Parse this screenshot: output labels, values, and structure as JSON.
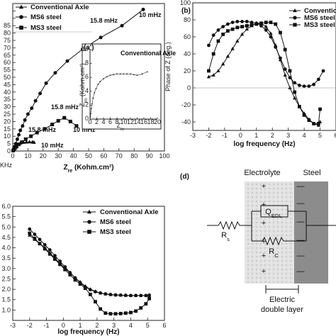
{
  "chart_data": [
    {
      "id": "a",
      "type": "scatter",
      "title": "",
      "panel_label": "",
      "xlabel": "Z",
      "xlabel_sub": "re",
      "xlabel_unit": " (Kohm.cm²)",
      "ylabel": "",
      "xlim": [
        0,
        100
      ],
      "ylim": [
        0,
        100
      ],
      "xticks": [
        0,
        10,
        20,
        30,
        40,
        50,
        60,
        70,
        80,
        90,
        100
      ],
      "yticks": [
        0,
        5,
        10,
        15,
        20,
        25,
        30,
        35,
        40,
        45,
        50,
        55,
        60,
        65,
        70,
        75,
        80,
        85,
        90,
        95
      ],
      "ytick_labels_shown": [
        "0",
        "5",
        "10",
        "15",
        "20",
        "25",
        "30",
        "35",
        "40",
        "45",
        "50",
        "55",
        "60",
        "65",
        "70",
        "75",
        "80",
        "85"
      ],
      "legend": [
        "Conventional Axle",
        "MS6 steel",
        "MS3 steel"
      ],
      "corner_label": "KHz",
      "series": [
        {
          "name": "MS6 steel",
          "marker": "circle",
          "x": [
            0.3,
            0.8,
            1.3,
            2,
            3,
            4,
            5,
            6.5,
            8,
            10,
            12.5,
            15,
            18,
            22,
            28,
            36,
            46,
            58,
            72,
            86
          ],
          "y": [
            0.5,
            1.5,
            3,
            5,
            8,
            11,
            14,
            17,
            21,
            25,
            29,
            34,
            39,
            46,
            53,
            61,
            69,
            77,
            85,
            96
          ]
        },
        {
          "name": "MS3 steel",
          "marker": "square",
          "x": [
            0.3,
            0.8,
            1.5,
            2.5,
            4,
            6,
            8.5,
            12,
            16,
            21,
            26,
            30,
            34,
            38,
            42
          ],
          "y": [
            0.3,
            1,
            2,
            3,
            4.5,
            6,
            8,
            10,
            12.5,
            15,
            18,
            20.5,
            22.5,
            20,
            17
          ]
        },
        {
          "name": "Conventional Axle",
          "marker": "triangle",
          "x": [
            0.2,
            0.5,
            1,
            1.5,
            2.5,
            3.5,
            5,
            7,
            9,
            11,
            13,
            14
          ],
          "y": [
            0.2,
            0.8,
            1.5,
            2.5,
            3.5,
            4.5,
            5.3,
            5.8,
            6,
            6.1,
            6,
            5.8
          ]
        }
      ],
      "annotations": [
        "15.8 mHz",
        "10 mHz",
        "15.8 mHz",
        "10 mHz",
        "15.8 mHz",
        "10 mHz"
      ],
      "inset": {
        "label": "(a')",
        "title": "Conventional Axle",
        "xlabel": "Z",
        "xlabel_sub": "re",
        "ylabel": "Z",
        "ylabel_sub": "im",
        "ylabel_unit": " (Kohm.cm²)",
        "xlim": [
          0,
          20
        ],
        "ylim": [
          0,
          10
        ],
        "xticks": [
          0,
          2,
          4,
          6,
          8,
          10,
          12,
          14,
          16,
          18,
          20
        ],
        "yticks": [
          0,
          2,
          4,
          6,
          8,
          10
        ],
        "x": [
          0.1,
          0.2,
          0.4,
          0.6,
          0.9,
          1.3,
          1.8,
          2.4,
          3,
          4,
          5,
          6,
          7,
          8,
          9,
          10,
          11,
          12,
          13,
          14,
          15.5,
          17
        ],
        "y": [
          0.3,
          0.8,
          1.5,
          2.2,
          3,
          3.8,
          4.4,
          5,
          5.4,
          5.8,
          6.1,
          6.3,
          6.4,
          6.5,
          6.5,
          6.5,
          6.5,
          6.5,
          6.4,
          6.3,
          6.5,
          6.8
        ]
      }
    },
    {
      "id": "b",
      "type": "scatter",
      "title": "",
      "panel_label": "(b)",
      "xlabel": "log frequency (Hz)",
      "ylabel": "Phase of Z (deg.)",
      "xlim": [
        -3,
        6
      ],
      "ylim": [
        -50,
        100
      ],
      "xticks": [
        -3,
        -2,
        -1,
        0,
        1,
        2,
        3,
        4,
        5,
        6
      ],
      "yticks": [
        -40,
        -20,
        0,
        20,
        40,
        60,
        80,
        100
      ],
      "legend": [
        "Conventional Axle",
        "MS6 steel",
        "MS3 steel"
      ],
      "series": [
        {
          "name": "Conventional Axle",
          "marker": "triangle",
          "x": [
            -2,
            -1.7,
            -1.4,
            -1.1,
            -0.8,
            -0.5,
            -0.2,
            0.1,
            0.4,
            0.7,
            1.0,
            1.3,
            1.6,
            1.9,
            2.2,
            2.5,
            2.8,
            3.1,
            3.4,
            3.7,
            4.0,
            4.3,
            4.6,
            4.9,
            5
          ],
          "y": [
            13,
            15,
            20,
            28,
            37,
            46,
            55,
            63,
            69,
            73,
            76,
            76,
            72,
            64,
            50,
            33,
            15,
            0,
            -12,
            -22,
            -30,
            -37,
            -42,
            -44,
            -40
          ]
        },
        {
          "name": "MS6 steel",
          "marker": "circle",
          "x": [
            -2,
            -1.7,
            -1.4,
            -1.1,
            -0.8,
            -0.5,
            -0.2,
            0.1,
            0.4,
            0.7,
            1.0,
            1.3,
            1.6,
            1.9,
            2.2,
            2.5,
            2.8,
            3.1,
            3.4,
            3.7,
            4.0,
            4.3,
            4.6,
            4.9,
            5.2
          ],
          "y": [
            50,
            62,
            68,
            72,
            75,
            77,
            78,
            78,
            78,
            77,
            76,
            73,
            68,
            60,
            48,
            35,
            22,
            12,
            6,
            3,
            2,
            2,
            4,
            10,
            20
          ]
        },
        {
          "name": "MS3 steel",
          "marker": "square",
          "x": [
            -2,
            -1.7,
            -1.4,
            -1.1,
            -0.8,
            -0.5,
            -0.2,
            0.1,
            0.4,
            0.7,
            1.0,
            1.3,
            1.6,
            1.9,
            2.2,
            2.5,
            2.8,
            3.1,
            3.4,
            3.7,
            4.0,
            4.3,
            4.6,
            4.9,
            5
          ],
          "y": [
            20,
            40,
            55,
            63,
            67,
            69,
            71,
            72,
            73,
            74,
            75,
            76,
            77,
            77,
            75,
            65,
            45,
            20,
            -5,
            -22,
            -32,
            -38,
            -42,
            -42,
            -25
          ]
        }
      ]
    },
    {
      "id": "c",
      "type": "scatter",
      "title": "",
      "xlabel": "log frequency (Hz)",
      "ylabel": "",
      "xlim": [
        -3,
        6
      ],
      "ylim": [
        0.5,
        6.0
      ],
      "xticks": [
        -3,
        -2,
        -1,
        0,
        1,
        2,
        3,
        4,
        5,
        6
      ],
      "yticks": [
        1.0,
        1.5,
        2.0,
        2.5,
        3.0,
        3.5,
        4.0,
        4.5,
        5.0,
        5.5,
        6.0
      ],
      "ytick_labels": [
        "1.0",
        "1.5",
        "2.0",
        "2.5",
        "3.0",
        "3.5",
        "4.0",
        "4.5",
        "5.0",
        "5.5",
        "6.0"
      ],
      "legend": [
        "Conventional Axle",
        "MS6 steel",
        "MS3 steel"
      ],
      "series": [
        {
          "name": "Conventional Axle",
          "marker": "triangle",
          "x": [
            -2,
            -1.7,
            -1.4,
            -1.1,
            -0.8,
            -0.5,
            -0.2,
            0.1,
            0.4,
            0.7,
            1.0,
            1.3,
            1.6,
            1.9,
            2.2,
            2.5,
            2.8,
            3.1,
            3.4,
            3.7,
            4.0,
            4.3,
            4.6,
            4.9,
            5.1
          ],
          "y": [
            4.6,
            4.4,
            4.2,
            4.0,
            3.75,
            3.5,
            3.25,
            3.0,
            2.8,
            2.55,
            2.35,
            2.15,
            2.0,
            1.9,
            1.82,
            1.77,
            1.74,
            1.72,
            1.71,
            1.7,
            1.7,
            1.7,
            1.7,
            1.7,
            1.68
          ]
        },
        {
          "name": "MS6 steel",
          "marker": "circle",
          "x": [
            -2,
            -1.7,
            -1.4,
            -1.1,
            -0.8,
            -0.5,
            -0.2,
            0.1,
            0.4,
            0.7,
            1.0,
            1.3,
            1.6,
            1.9,
            2.2,
            2.5,
            2.8,
            3.1,
            3.4,
            3.7,
            4.0,
            4.3,
            4.6,
            4.9,
            5.1
          ],
          "y": [
            4.9,
            4.65,
            4.4,
            4.15,
            3.9,
            3.62,
            3.35,
            3.08,
            2.8,
            2.55,
            2.32,
            2.12,
            1.98,
            1.88,
            1.82,
            1.78,
            1.75,
            1.73,
            1.72,
            1.71,
            1.7,
            1.7,
            1.7,
            1.7,
            1.72
          ]
        },
        {
          "name": "MS3 steel",
          "marker": "square",
          "x": [
            -2,
            -1.7,
            -1.4,
            -1.1,
            -0.8,
            -0.5,
            -0.2,
            0.1,
            0.4,
            0.7,
            1.0,
            1.3,
            1.6,
            1.9,
            2.2,
            2.5,
            2.8,
            3.1,
            3.4,
            3.7,
            4.0,
            4.3,
            4.6,
            4.9,
            5.1
          ],
          "y": [
            4.7,
            4.45,
            4.2,
            3.95,
            3.7,
            3.45,
            3.2,
            2.95,
            2.7,
            2.45,
            2.25,
            2.05,
            1.75,
            1.4,
            1.05,
            0.85,
            0.82,
            0.82,
            0.83,
            0.85,
            0.88,
            0.95,
            1.1,
            1.3,
            1.55
          ]
        }
      ]
    }
  ],
  "diagram_d": {
    "panel_label": "(d)",
    "electrolyte_label": "Electrolyte",
    "steel_label": "Steel",
    "rs_label": "R",
    "rs_sub": "s",
    "q_label": "Q",
    "q_sub": "EDL",
    "rc_label": "R",
    "rc_sub": "C",
    "caption_line1": "Electric",
    "caption_line2": "double layer",
    "plus": "+",
    "minus": "—"
  }
}
